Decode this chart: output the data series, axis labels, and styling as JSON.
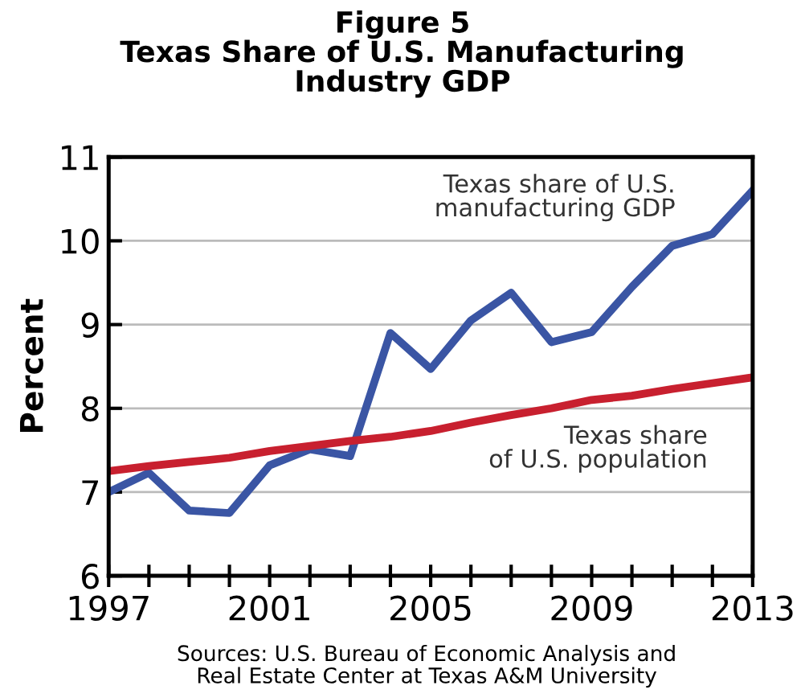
{
  "chart_data": {
    "type": "line",
    "title": "Figure 5\nTexas Share of U.S. Manufacturing\nIndustry GDP",
    "ylabel": "Percent",
    "x": [
      1997,
      1998,
      1999,
      2000,
      2001,
      2002,
      2003,
      2004,
      2005,
      2006,
      2007,
      2008,
      2009,
      2010,
      2011,
      2012,
      2013
    ],
    "series": [
      {
        "name": "Texas share of U.S.\nmanufacturing GDP",
        "color": "#3a55a4",
        "values": [
          7.0,
          7.23,
          6.78,
          6.75,
          7.32,
          7.51,
          7.43,
          8.9,
          8.47,
          9.05,
          9.38,
          8.79,
          8.91,
          9.45,
          9.94,
          10.08,
          10.6
        ]
      },
      {
        "name": "Texas share\nof U.S. population",
        "color": "#c8202f",
        "values": [
          7.25,
          7.31,
          7.36,
          7.41,
          7.49,
          7.55,
          7.61,
          7.66,
          7.73,
          7.83,
          7.92,
          8.0,
          8.1,
          8.15,
          8.23,
          8.3,
          8.37
        ]
      }
    ],
    "xlim": [
      1997,
      2013
    ],
    "xticks": [
      1997,
      {
        "value": 1998,
        "label": null
      },
      {
        "value": 1999,
        "label": null
      },
      {
        "value": 2000,
        "label": null
      },
      2001,
      {
        "value": 2002,
        "label": null
      },
      {
        "value": 2003,
        "label": null
      },
      {
        "value": 2004,
        "label": null
      },
      2005,
      {
        "value": 2006,
        "label": null
      },
      {
        "value": 2007,
        "label": null
      },
      {
        "value": 2008,
        "label": null
      },
      2009,
      {
        "value": 2010,
        "label": null
      },
      {
        "value": 2011,
        "label": null
      },
      {
        "value": 2012,
        "label": null
      },
      2013
    ],
    "ylim": [
      6,
      11
    ],
    "yticks": [
      6,
      7,
      8,
      9,
      10,
      11
    ],
    "grid": "y",
    "legend": false,
    "line_style": "solid",
    "marker": "none",
    "annotations": [
      "Sources: U.S. Bureau of Economic Analysis and\nReal Estate Center at Texas A&M University"
    ]
  }
}
